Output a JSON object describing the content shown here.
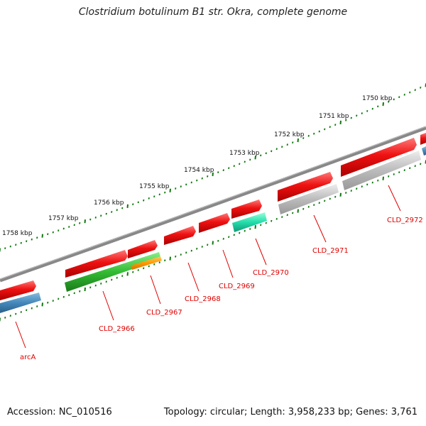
{
  "title": "Clostridium botulinum B1 str. Okra, complete genome",
  "footer": {
    "accession": "Accession: NC_010516",
    "topology": "Topology: circular; Length: 3,958,233 bp; Genes: 3,761"
  },
  "scale_labels": [
    "1750 kbp",
    "1751 kbp",
    "1752 kbp",
    "1753 kbp",
    "1754 kbp",
    "1755 kbp",
    "1756 kbp",
    "1757 kbp",
    "1758 kbp"
  ],
  "gene_labels": [
    "arcA",
    "CLD_2966",
    "CLD_2967",
    "CLD_2968",
    "CLD_2969",
    "CLD_2970",
    "CLD_2971",
    "CLD_2972"
  ],
  "colors": {
    "cds_red": "#ee1111",
    "backbone": "#777777",
    "tick_green": "#117711",
    "feature_green": "#33bb33",
    "feature_orange": "#ff9900",
    "feature_teal": "#22ddaa",
    "feature_blue": "#4488bb",
    "feature_grey": "#bbbbbb",
    "label_red": "#e00000"
  }
}
